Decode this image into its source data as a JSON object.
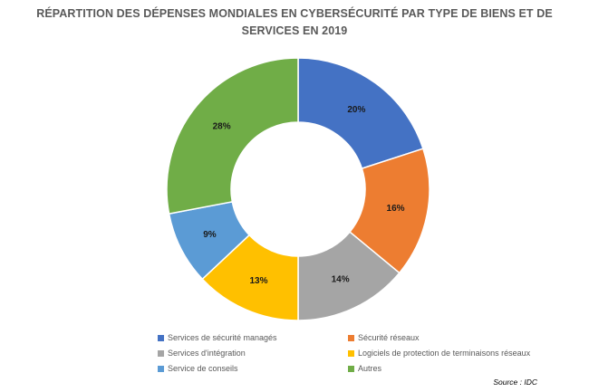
{
  "chart_data": {
    "type": "pie",
    "title": "RÉPARTITION DES DÉPENSES MONDIALES EN CYBERSÉCURITÉ PAR TYPE DE BIENS ET DE SERVICES  EN 2019",
    "donut": true,
    "legend_position": "bottom",
    "slices": [
      {
        "label": "Services de sécurité managés",
        "value": 20,
        "display": "20%",
        "color": "#4472C4"
      },
      {
        "label": "Sécurité réseaux",
        "value": 16,
        "display": "16%",
        "color": "#ED7D31"
      },
      {
        "label": "Services d'intégration",
        "value": 14,
        "display": "14%",
        "color": "#A5A5A5"
      },
      {
        "label": "Logiciels de protection de terminaisons réseaux",
        "value": 13,
        "display": "13%",
        "color": "#FFC000"
      },
      {
        "label": "Service de conseils",
        "value": 9,
        "display": "9%",
        "color": "#5B9BD5"
      },
      {
        "label": "Autres",
        "value": 28,
        "display": "28%",
        "color": "#70AD47"
      }
    ],
    "source": "Source : IDC"
  }
}
